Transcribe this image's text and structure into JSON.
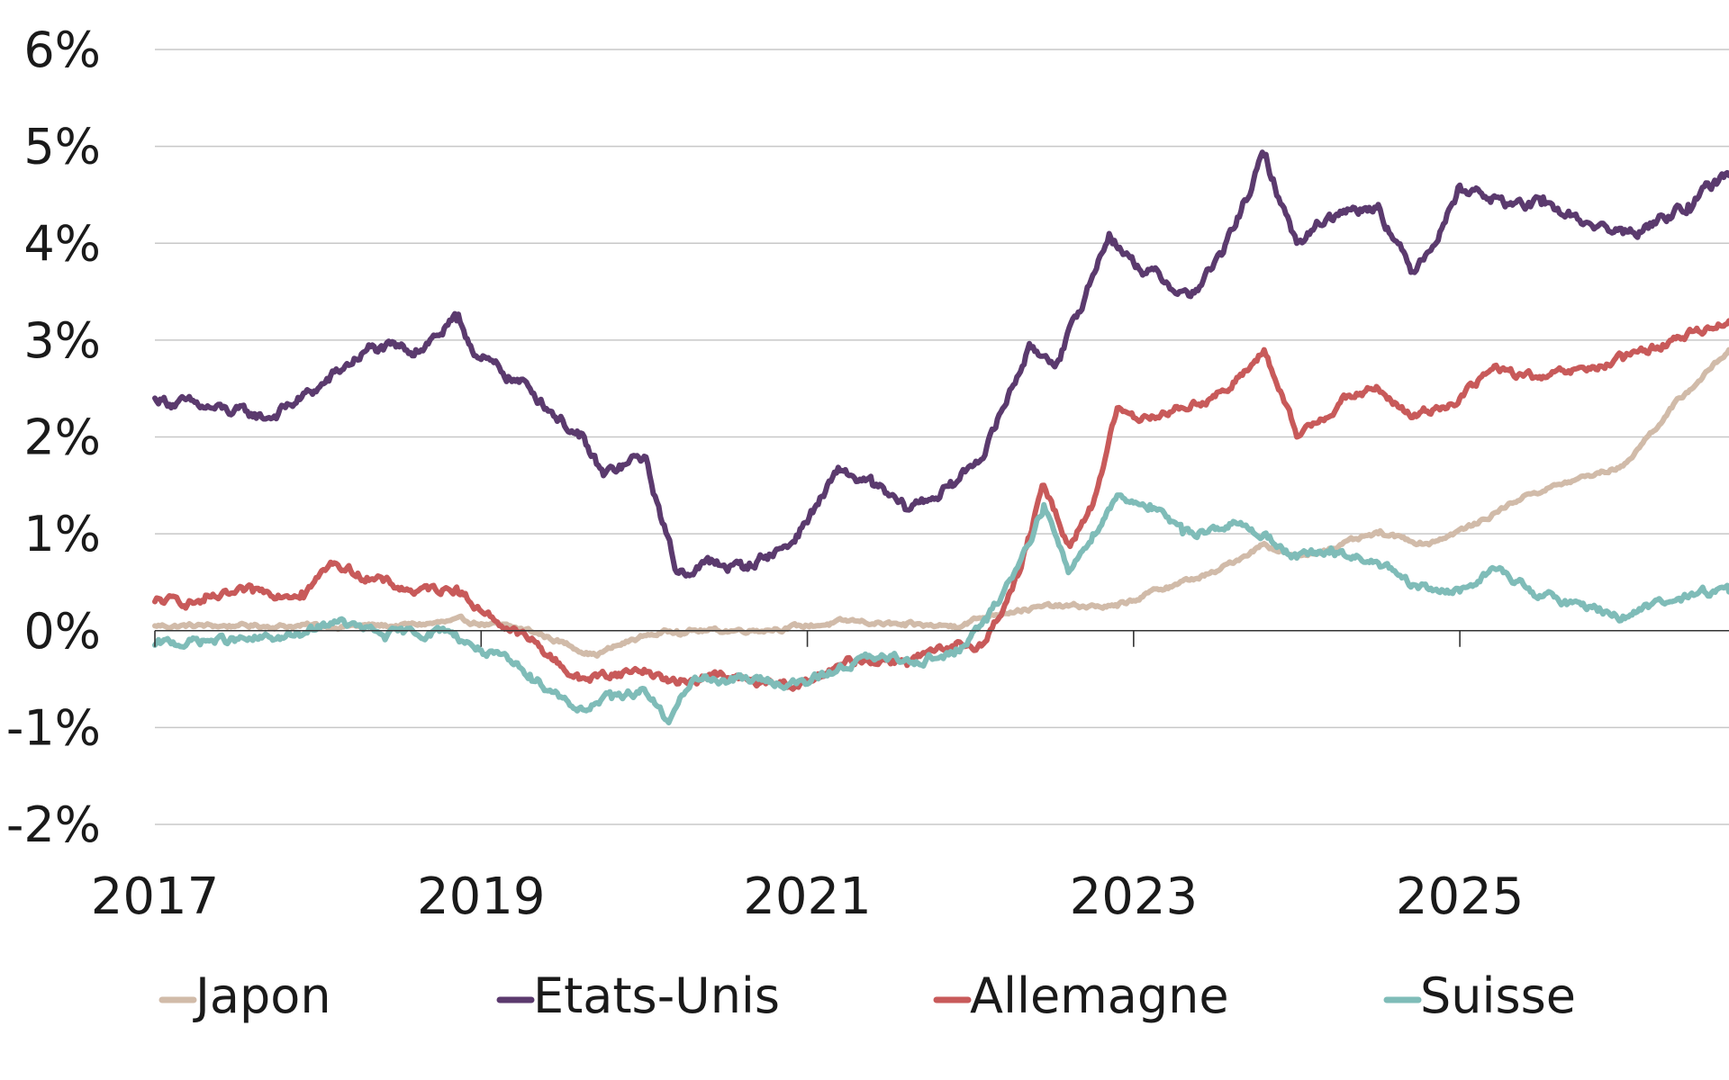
{
  "chart_data": {
    "type": "line",
    "title": "",
    "xlabel": "",
    "ylabel": "",
    "x_tick_labels": [
      "2017",
      "2019",
      "2021",
      "2023",
      "2025"
    ],
    "x_ticks": [
      2017,
      2019,
      2021,
      2023,
      2025
    ],
    "xlim": [
      2017,
      2026.65
    ],
    "y_tick_labels": [
      "6%",
      "5%",
      "4%",
      "3%",
      "2%",
      "1%",
      "0%",
      "-1%",
      "-2%"
    ],
    "y_ticks": [
      6,
      5,
      4,
      3,
      2,
      1,
      0,
      -1,
      -2
    ],
    "ylim": [
      -2,
      6
    ],
    "y_unit": "%",
    "grid": "horizontal",
    "legend_position": "bottom",
    "legend": [
      "Japon",
      "Etats-Unis",
      "Allemagne",
      "Suisse"
    ],
    "series": [
      {
        "name": "Japon",
        "color": "#d1bba9",
        "points": [
          [
            2017.0,
            0.05
          ],
          [
            2017.5,
            0.05
          ],
          [
            2018.0,
            0.05
          ],
          [
            2018.5,
            0.05
          ],
          [
            2018.9,
            0.1
          ],
          [
            2019.3,
            0.0
          ],
          [
            2019.7,
            -0.25
          ],
          [
            2020.0,
            -0.05
          ],
          [
            2020.2,
            0.0
          ],
          [
            2020.5,
            0.0
          ],
          [
            2020.8,
            0.02
          ],
          [
            2021.0,
            0.05
          ],
          [
            2021.3,
            0.1
          ],
          [
            2021.6,
            0.05
          ],
          [
            2021.9,
            0.05
          ],
          [
            2022.2,
            0.2
          ],
          [
            2022.5,
            0.25
          ],
          [
            2022.9,
            0.25
          ],
          [
            2023.2,
            0.45
          ],
          [
            2023.5,
            0.6
          ],
          [
            2023.8,
            0.9
          ],
          [
            2024.0,
            0.75
          ],
          [
            2024.2,
            0.85
          ],
          [
            2024.5,
            1.0
          ],
          [
            2024.8,
            0.9
          ],
          [
            2025.1,
            1.1
          ],
          [
            2025.4,
            1.4
          ],
          [
            2025.7,
            1.55
          ],
          [
            2026.0,
            1.7
          ],
          [
            2026.3,
            2.3
          ],
          [
            2026.65,
            2.9
          ]
        ]
      },
      {
        "name": "Etats-Unis",
        "color": "#5b3a6e",
        "points": [
          [
            2017.0,
            2.4
          ],
          [
            2017.3,
            2.3
          ],
          [
            2017.7,
            2.2
          ],
          [
            2018.0,
            2.5
          ],
          [
            2018.3,
            2.9
          ],
          [
            2018.6,
            2.9
          ],
          [
            2018.85,
            3.2
          ],
          [
            2019.0,
            2.8
          ],
          [
            2019.3,
            2.5
          ],
          [
            2019.6,
            2.0
          ],
          [
            2019.75,
            1.6
          ],
          [
            2020.0,
            1.8
          ],
          [
            2020.2,
            0.6
          ],
          [
            2020.4,
            0.7
          ],
          [
            2020.6,
            0.65
          ],
          [
            2020.9,
            0.9
          ],
          [
            2021.2,
            1.65
          ],
          [
            2021.4,
            1.5
          ],
          [
            2021.6,
            1.25
          ],
          [
            2021.9,
            1.5
          ],
          [
            2022.1,
            1.9
          ],
          [
            2022.35,
            2.9
          ],
          [
            2022.55,
            2.8
          ],
          [
            2022.85,
            4.1
          ],
          [
            2023.0,
            3.8
          ],
          [
            2023.2,
            3.6
          ],
          [
            2023.35,
            3.45
          ],
          [
            2023.55,
            3.9
          ],
          [
            2023.8,
            4.9
          ],
          [
            2024.0,
            4.0
          ],
          [
            2024.2,
            4.3
          ],
          [
            2024.5,
            4.4
          ],
          [
            2024.7,
            3.7
          ],
          [
            2024.9,
            4.2
          ],
          [
            2025.0,
            4.6
          ],
          [
            2025.3,
            4.4
          ],
          [
            2025.5,
            4.4
          ],
          [
            2025.8,
            4.2
          ],
          [
            2026.0,
            4.1
          ],
          [
            2026.2,
            4.2
          ],
          [
            2026.4,
            4.4
          ],
          [
            2026.65,
            4.7
          ]
        ]
      },
      {
        "name": "Allemagne",
        "color": "#c85a5a",
        "points": [
          [
            2017.0,
            0.3
          ],
          [
            2017.3,
            0.3
          ],
          [
            2017.6,
            0.4
          ],
          [
            2017.9,
            0.4
          ],
          [
            2018.1,
            0.7
          ],
          [
            2018.3,
            0.55
          ],
          [
            2018.6,
            0.4
          ],
          [
            2018.85,
            0.45
          ],
          [
            2019.0,
            0.2
          ],
          [
            2019.3,
            -0.1
          ],
          [
            2019.6,
            -0.5
          ],
          [
            2019.8,
            -0.45
          ],
          [
            2020.0,
            -0.4
          ],
          [
            2020.2,
            -0.55
          ],
          [
            2020.4,
            -0.45
          ],
          [
            2020.7,
            -0.55
          ],
          [
            2021.0,
            -0.55
          ],
          [
            2021.3,
            -0.3
          ],
          [
            2021.6,
            -0.3
          ],
          [
            2021.9,
            -0.2
          ],
          [
            2022.1,
            -0.1
          ],
          [
            2022.3,
            0.6
          ],
          [
            2022.45,
            1.5
          ],
          [
            2022.6,
            0.9
          ],
          [
            2022.75,
            1.3
          ],
          [
            2022.9,
            2.3
          ],
          [
            2023.0,
            2.2
          ],
          [
            2023.3,
            2.3
          ],
          [
            2023.6,
            2.5
          ],
          [
            2023.8,
            2.9
          ],
          [
            2024.0,
            2.0
          ],
          [
            2024.3,
            2.4
          ],
          [
            2024.5,
            2.5
          ],
          [
            2024.7,
            2.2
          ],
          [
            2025.0,
            2.4
          ],
          [
            2025.2,
            2.7
          ],
          [
            2025.5,
            2.6
          ],
          [
            2025.8,
            2.7
          ],
          [
            2026.0,
            2.8
          ],
          [
            2026.3,
            3.0
          ],
          [
            2026.65,
            3.2
          ]
        ]
      },
      {
        "name": "Suisse",
        "color": "#7fbcb8",
        "points": [
          [
            2017.0,
            -0.15
          ],
          [
            2017.3,
            -0.1
          ],
          [
            2017.6,
            -0.1
          ],
          [
            2017.9,
            -0.05
          ],
          [
            2018.1,
            0.1
          ],
          [
            2018.4,
            -0.05
          ],
          [
            2018.8,
            0.0
          ],
          [
            2019.0,
            -0.2
          ],
          [
            2019.3,
            -0.45
          ],
          [
            2019.6,
            -0.8
          ],
          [
            2019.8,
            -0.7
          ],
          [
            2020.0,
            -0.6
          ],
          [
            2020.15,
            -0.95
          ],
          [
            2020.3,
            -0.5
          ],
          [
            2020.6,
            -0.5
          ],
          [
            2021.0,
            -0.55
          ],
          [
            2021.3,
            -0.3
          ],
          [
            2021.6,
            -0.3
          ],
          [
            2021.9,
            -0.25
          ],
          [
            2022.1,
            0.1
          ],
          [
            2022.3,
            0.7
          ],
          [
            2022.45,
            1.3
          ],
          [
            2022.6,
            0.6
          ],
          [
            2022.75,
            1.0
          ],
          [
            2022.9,
            1.4
          ],
          [
            2023.1,
            1.3
          ],
          [
            2023.3,
            1.0
          ],
          [
            2023.6,
            1.1
          ],
          [
            2023.8,
            1.0
          ],
          [
            2024.0,
            0.75
          ],
          [
            2024.2,
            0.8
          ],
          [
            2024.5,
            0.7
          ],
          [
            2024.7,
            0.45
          ],
          [
            2025.0,
            0.4
          ],
          [
            2025.2,
            0.65
          ],
          [
            2025.5,
            0.35
          ],
          [
            2025.8,
            0.25
          ],
          [
            2026.0,
            0.15
          ],
          [
            2026.3,
            0.3
          ],
          [
            2026.5,
            0.4
          ],
          [
            2026.65,
            0.4
          ]
        ]
      }
    ]
  }
}
